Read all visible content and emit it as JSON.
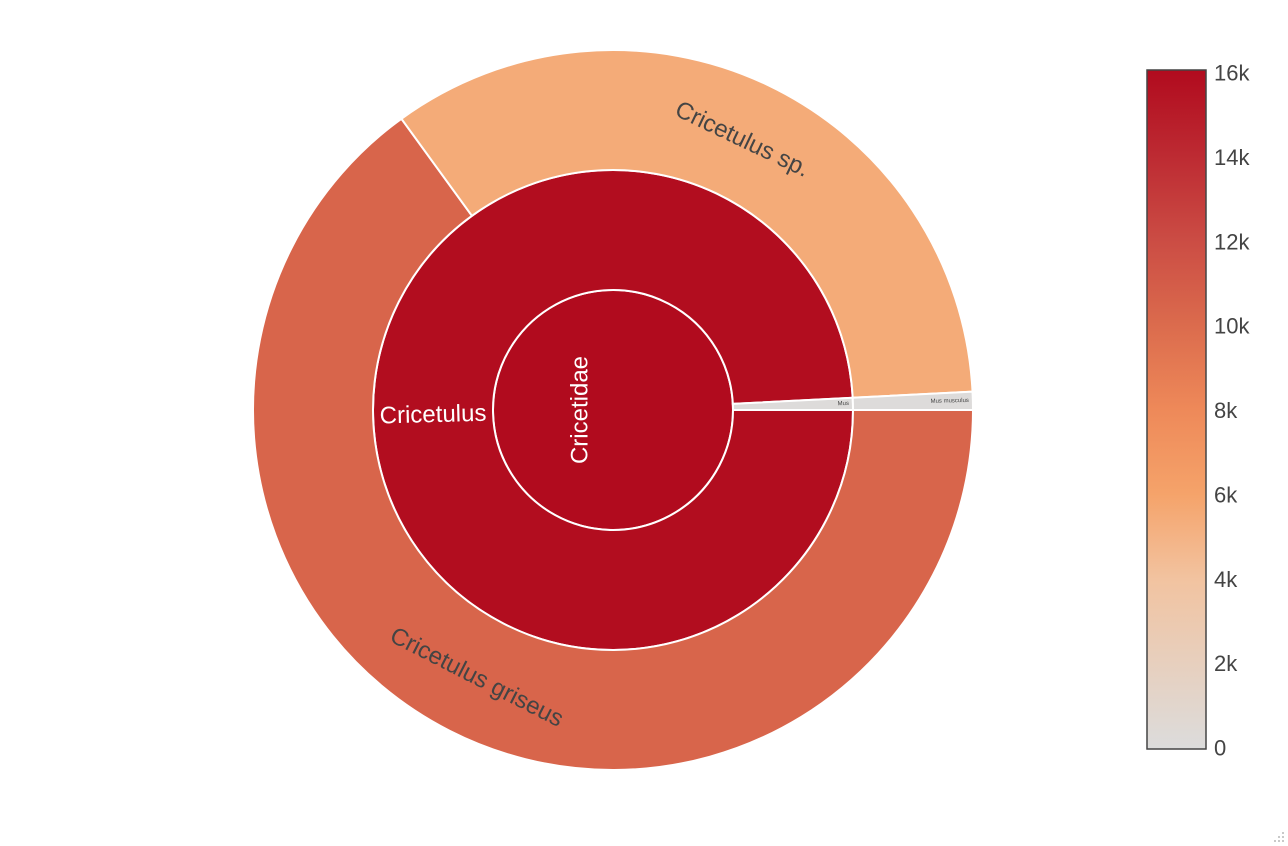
{
  "chart_data": {
    "type": "sunburst",
    "title": "",
    "root": {
      "label": "Cricetidae",
      "value": 16000,
      "children": [
        {
          "label": "Cricetulus",
          "value": 15870,
          "children": [
            {
              "label": "Cricetulus griseus",
              "value": 10400
            },
            {
              "label": "Cricetulus sp.",
              "value": 5470
            }
          ]
        },
        {
          "label": "Mus",
          "value": 130,
          "children": [
            {
              "label": "Mus musculus",
              "value": 130
            }
          ]
        }
      ]
    },
    "colorbar": {
      "range": [
        0,
        16000
      ],
      "ticks": [
        {
          "value": 0,
          "label": "0"
        },
        {
          "value": 2000,
          "label": "2k"
        },
        {
          "value": 4000,
          "label": "4k"
        },
        {
          "value": 6000,
          "label": "6k"
        },
        {
          "value": 8000,
          "label": "8k"
        },
        {
          "value": 10000,
          "label": "10k"
        },
        {
          "value": 12000,
          "label": "12k"
        },
        {
          "value": 14000,
          "label": "14k"
        },
        {
          "value": 16000,
          "label": "16k"
        }
      ],
      "colorscale": [
        [
          0.0,
          "#dcdcdc"
        ],
        [
          0.25,
          "#f2c3a0"
        ],
        [
          0.375,
          "#f5a36a"
        ],
        [
          0.5,
          "#ee8959"
        ],
        [
          0.625,
          "#db6b4d"
        ],
        [
          0.75,
          "#cb4c44"
        ],
        [
          0.875,
          "#bd2a32"
        ],
        [
          1.0,
          "#b10b1e"
        ]
      ],
      "placement": "right"
    }
  }
}
